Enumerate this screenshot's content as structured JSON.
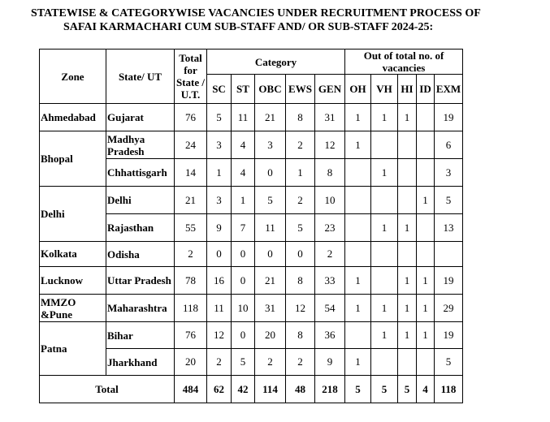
{
  "title": {
    "line1": "STATEWISE & CATEGORYWISE VACANCIES UNDER RECRUITMENT PROCESS OF",
    "line2": "SAFAI KARMACHARI CUM SUB-STAFF AND/ OR SUB-STAFF 2024-25:"
  },
  "headers": {
    "zone": "Zone",
    "state": "State/ UT",
    "total": "Total for State / U.T.",
    "category": "Category",
    "out_of": "Out of total no. of vacancies",
    "sc": "SC",
    "st": "ST",
    "obc": "OBC",
    "ews": "EWS",
    "gen": "GEN",
    "oh": "OH",
    "vh": "VH",
    "hi": "HI",
    "id": "ID",
    "exm": "EXM"
  },
  "zones": {
    "ahmedabad": "Ahmedabad",
    "bhopal": "Bhopal",
    "delhi": "Delhi",
    "kolkata": "Kolkata",
    "lucknow": "Lucknow",
    "mmzo": "MMZO &Pune",
    "patna": "Patna"
  },
  "rows": [
    {
      "state": "Gujarat",
      "total": "76",
      "sc": "5",
      "st": "11",
      "obc": "21",
      "ews": "8",
      "gen": "31",
      "oh": "1",
      "vh": "1",
      "hi": "1",
      "id": "",
      "exm": "19"
    },
    {
      "state": "Madhya Pradesh",
      "total": "24",
      "sc": "3",
      "st": "4",
      "obc": "3",
      "ews": "2",
      "gen": "12",
      "oh": "1",
      "vh": "",
      "hi": "",
      "id": "",
      "exm": "6"
    },
    {
      "state": "Chhattisgarh",
      "total": "14",
      "sc": "1",
      "st": "4",
      "obc": "0",
      "ews": "1",
      "gen": "8",
      "oh": "",
      "vh": "1",
      "hi": "",
      "id": "",
      "exm": "3"
    },
    {
      "state": "Delhi",
      "total": "21",
      "sc": "3",
      "st": "1",
      "obc": "5",
      "ews": "2",
      "gen": "10",
      "oh": "",
      "vh": "",
      "hi": "",
      "id": "1",
      "exm": "5"
    },
    {
      "state": "Rajasthan",
      "total": "55",
      "sc": "9",
      "st": "7",
      "obc": "11",
      "ews": "5",
      "gen": "23",
      "oh": "",
      "vh": "1",
      "hi": "1",
      "id": "",
      "exm": "13"
    },
    {
      "state": "Odisha",
      "total": "2",
      "sc": "0",
      "st": "0",
      "obc": "0",
      "ews": "0",
      "gen": "2",
      "oh": "",
      "vh": "",
      "hi": "",
      "id": "",
      "exm": ""
    },
    {
      "state": "Uttar Pradesh",
      "total": "78",
      "sc": "16",
      "st": "0",
      "obc": "21",
      "ews": "8",
      "gen": "33",
      "oh": "1",
      "vh": "",
      "hi": "1",
      "id": "1",
      "exm": "19"
    },
    {
      "state": "Maharashtra",
      "total": "118",
      "sc": "11",
      "st": "10",
      "obc": "31",
      "ews": "12",
      "gen": "54",
      "oh": "1",
      "vh": "1",
      "hi": "1",
      "id": "1",
      "exm": "29"
    },
    {
      "state": "Bihar",
      "total": "76",
      "sc": "12",
      "st": "0",
      "obc": "20",
      "ews": "8",
      "gen": "36",
      "oh": "",
      "vh": "1",
      "hi": "1",
      "id": "1",
      "exm": "19"
    },
    {
      "state": "Jharkhand",
      "total": "20",
      "sc": "2",
      "st": "5",
      "obc": "2",
      "ews": "2",
      "gen": "9",
      "oh": "1",
      "vh": "",
      "hi": "",
      "id": "",
      "exm": "5"
    }
  ],
  "totals": {
    "label": "Total",
    "total": "484",
    "sc": "62",
    "st": "42",
    "obc": "114",
    "ews": "48",
    "gen": "218",
    "oh": "5",
    "vh": "5",
    "hi": "5",
    "id": "4",
    "exm": "118"
  }
}
